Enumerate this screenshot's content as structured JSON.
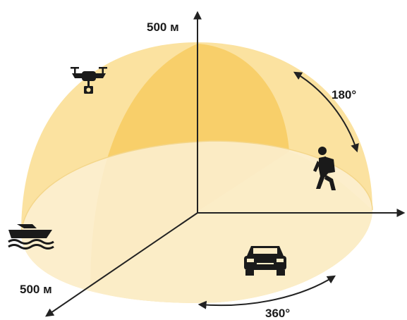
{
  "labels": {
    "vertical_range": "500 м",
    "horizontal_range": "500 м",
    "vertical_angle": "180°",
    "horizontal_angle": "360°"
  },
  "icons": {
    "drone": "drone-icon",
    "hiker": "hiker-icon",
    "boat": "boat-icon",
    "car": "car-icon"
  },
  "colors": {
    "dome_back": "#fbe3a0",
    "dome_front": "#f9d57a",
    "dome_shade": "#f6c650",
    "base": "#fbf0d6",
    "axis": "#222222"
  }
}
